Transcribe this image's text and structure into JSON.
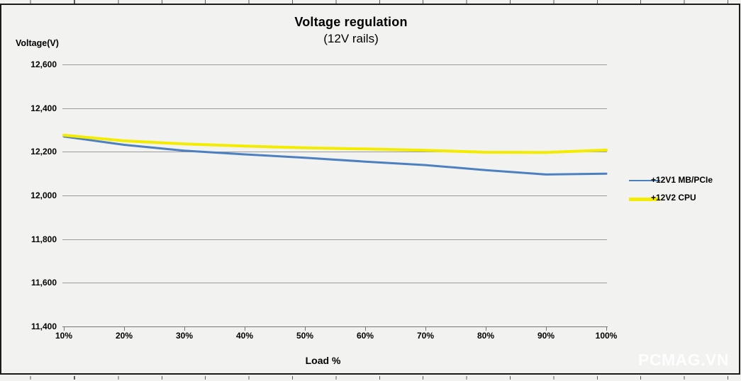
{
  "watermark": "PCMAG.VN",
  "chart_data": {
    "type": "line",
    "title": "Voltage regulation",
    "subtitle": "(12V rails)",
    "xlabel": "Load %",
    "ylabel": "Voltage(V)",
    "categories": [
      "10%",
      "20%",
      "30%",
      "40%",
      "50%",
      "60%",
      "70%",
      "80%",
      "90%",
      "100%"
    ],
    "ytick_labels": [
      "12,600",
      "12,400",
      "12,200",
      "12,000",
      "11,800",
      "11,600",
      "11,400"
    ],
    "ylim": [
      11400,
      12600
    ],
    "grid": true,
    "legend_position": "right-middle",
    "series": [
      {
        "name": "+12V1 MB/PCIe",
        "color": "#4d80c0",
        "stroke_width": 3,
        "values": [
          12270,
          12232,
          12205,
          12188,
          12173,
          12155,
          12139,
          12116,
          12096,
          12100
        ]
      },
      {
        "name": "+12V2 CPU",
        "color": "#f3ec00",
        "stroke_width": 4,
        "values": [
          12276,
          12250,
          12236,
          12226,
          12218,
          12213,
          12207,
          12198,
          12197,
          12208
        ]
      }
    ]
  }
}
